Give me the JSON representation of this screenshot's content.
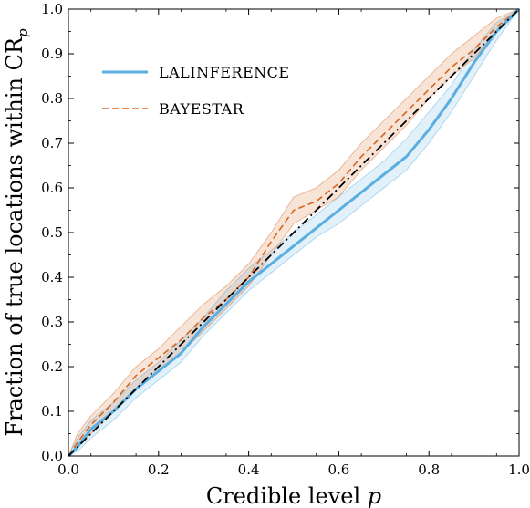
{
  "chart_data": {
    "type": "line",
    "title": "",
    "xlabel": "Credible level p",
    "ylabel": "Fraction of true locations within CRp",
    "xlim": [
      0.0,
      1.0
    ],
    "ylim": [
      0.0,
      1.0
    ],
    "xticks": [
      "0.0",
      "0.2",
      "0.4",
      "0.6",
      "0.8",
      "1.0"
    ],
    "yticks": [
      "0.0",
      "0.1",
      "0.2",
      "0.3",
      "0.4",
      "0.5",
      "0.6",
      "0.7",
      "0.8",
      "0.9",
      "1.0"
    ],
    "grid": false,
    "legend_position": "top-left",
    "colors": {
      "lalinference": "#5aaee0",
      "bayestar": "#d9661f",
      "diagonal": "#000000"
    },
    "series": [
      {
        "name": "LALINFERENCE",
        "style": "solid",
        "x": [
          0.0,
          0.02,
          0.05,
          0.1,
          0.15,
          0.2,
          0.25,
          0.3,
          0.35,
          0.4,
          0.45,
          0.5,
          0.55,
          0.6,
          0.65,
          0.7,
          0.75,
          0.8,
          0.85,
          0.9,
          0.95,
          1.0
        ],
        "y": [
          0.0,
          0.02,
          0.06,
          0.1,
          0.15,
          0.19,
          0.23,
          0.29,
          0.34,
          0.39,
          0.43,
          0.47,
          0.51,
          0.55,
          0.59,
          0.63,
          0.67,
          0.73,
          0.8,
          0.88,
          0.95,
          1.0
        ],
        "band_lower": [
          0.0,
          0.01,
          0.04,
          0.08,
          0.13,
          0.17,
          0.21,
          0.27,
          0.32,
          0.37,
          0.41,
          0.45,
          0.49,
          0.52,
          0.56,
          0.6,
          0.64,
          0.7,
          0.77,
          0.85,
          0.93,
          1.0
        ],
        "band_upper": [
          0.0,
          0.04,
          0.08,
          0.12,
          0.17,
          0.21,
          0.26,
          0.31,
          0.37,
          0.42,
          0.46,
          0.5,
          0.54,
          0.58,
          0.62,
          0.66,
          0.71,
          0.77,
          0.83,
          0.91,
          0.97,
          1.0
        ]
      },
      {
        "name": "BAYESTAR",
        "style": "dashed",
        "x": [
          0.0,
          0.02,
          0.05,
          0.1,
          0.15,
          0.2,
          0.25,
          0.3,
          0.35,
          0.4,
          0.45,
          0.5,
          0.55,
          0.6,
          0.65,
          0.7,
          0.75,
          0.8,
          0.85,
          0.9,
          0.95,
          1.0
        ],
        "y": [
          0.0,
          0.03,
          0.07,
          0.12,
          0.18,
          0.22,
          0.26,
          0.31,
          0.35,
          0.4,
          0.48,
          0.55,
          0.57,
          0.61,
          0.67,
          0.72,
          0.77,
          0.82,
          0.87,
          0.91,
          0.96,
          1.0
        ],
        "band_lower": [
          0.0,
          0.02,
          0.05,
          0.1,
          0.15,
          0.19,
          0.23,
          0.28,
          0.33,
          0.38,
          0.45,
          0.52,
          0.55,
          0.58,
          0.64,
          0.69,
          0.74,
          0.8,
          0.85,
          0.89,
          0.95,
          1.0
        ],
        "band_upper": [
          0.0,
          0.05,
          0.09,
          0.14,
          0.2,
          0.24,
          0.29,
          0.34,
          0.38,
          0.43,
          0.5,
          0.58,
          0.6,
          0.64,
          0.7,
          0.75,
          0.8,
          0.85,
          0.9,
          0.94,
          0.98,
          1.0
        ]
      },
      {
        "name": "",
        "style": "dashdot",
        "x": [
          0.0,
          1.0
        ],
        "y": [
          0.0,
          1.0
        ]
      }
    ]
  }
}
